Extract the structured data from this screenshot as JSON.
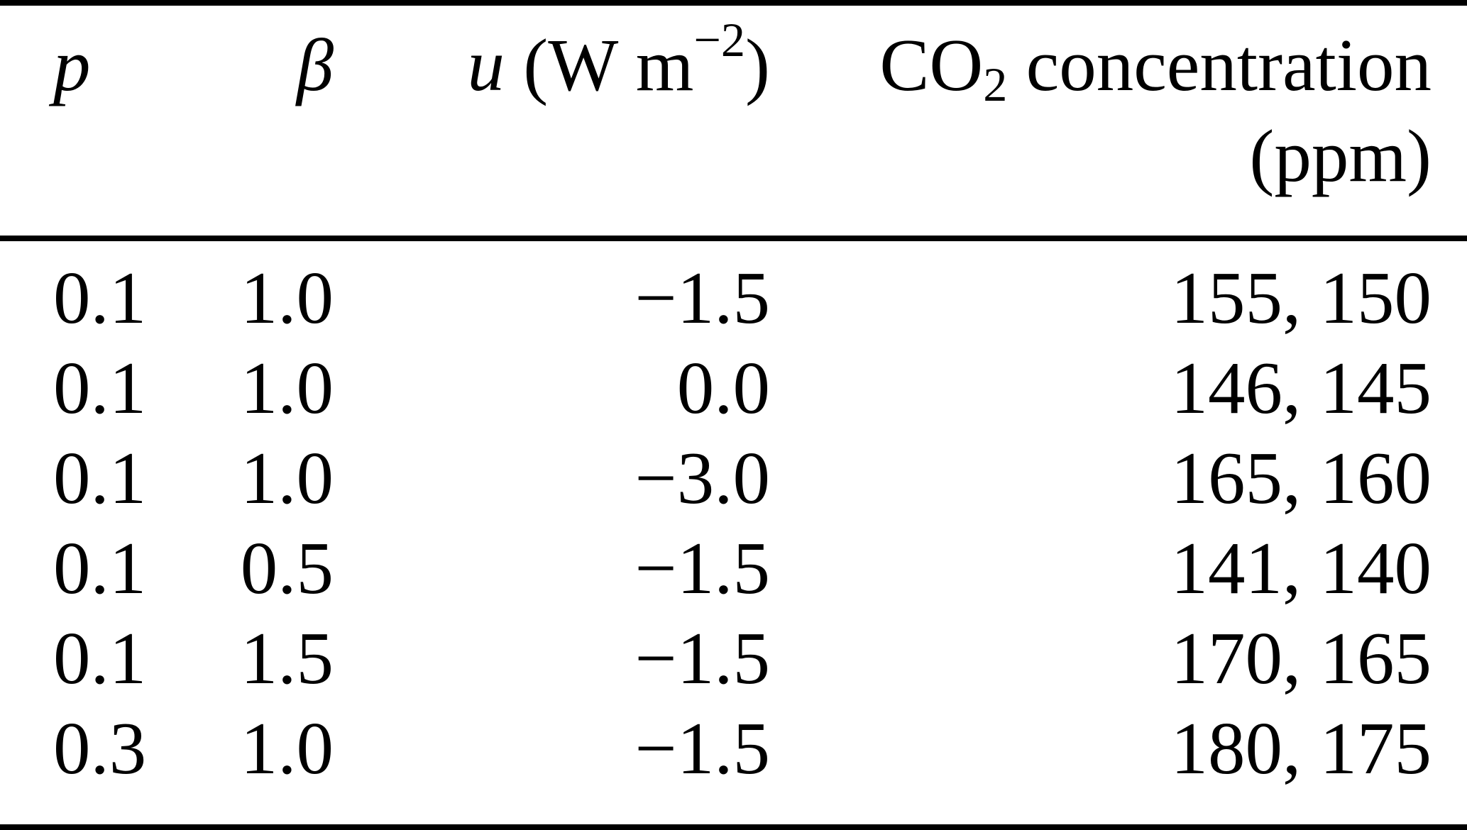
{
  "page": {
    "background": "#ffffff",
    "text_color": "#000000",
    "rule_color": "#000000"
  },
  "table": {
    "headers": {
      "p": {
        "symbol": "p"
      },
      "beta": {
        "symbol": "β"
      },
      "u": {
        "symbol": "u",
        "unit_open": " (W m",
        "unit_exp": "−2",
        "unit_close": ")"
      },
      "co2": {
        "prefix": "CO",
        "sub": "2",
        "rest": " concentration",
        "line2": "(ppm)"
      }
    },
    "rows": [
      [
        "0.1",
        "1.0",
        "−1.5",
        "155, 150"
      ],
      [
        "0.1",
        "1.0",
        "0.0",
        "146, 145"
      ],
      [
        "0.1",
        "1.0",
        "−3.0",
        "165, 160"
      ],
      [
        "0.1",
        "0.5",
        "−1.5",
        "141, 140"
      ],
      [
        "0.1",
        "1.5",
        "−1.5",
        "170, 165"
      ],
      [
        "0.3",
        "1.0",
        "−1.5",
        "180, 175"
      ]
    ]
  }
}
